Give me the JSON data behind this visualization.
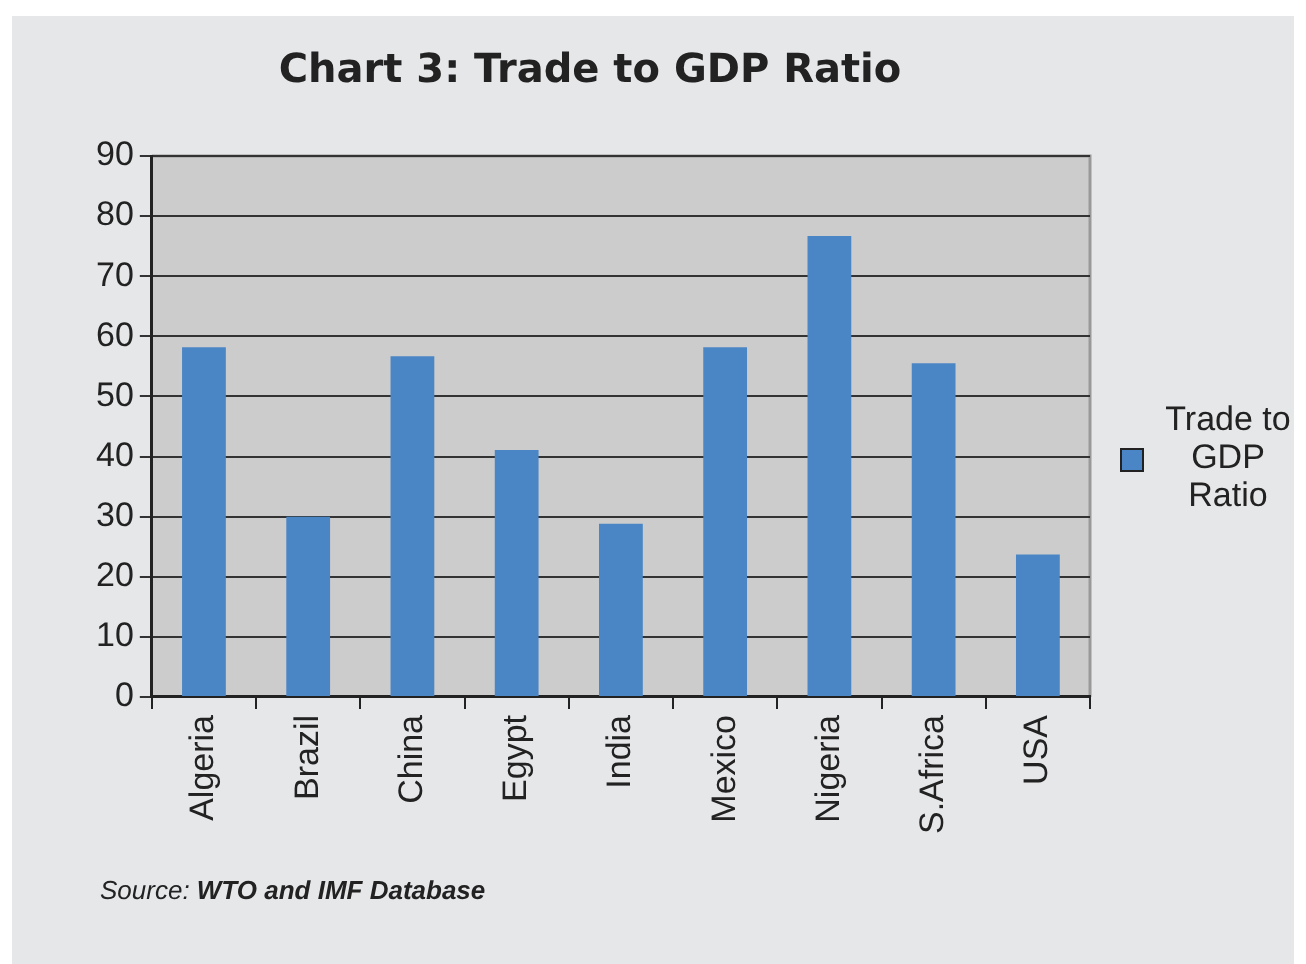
{
  "chart_data": {
    "type": "bar",
    "title": "Chart 3: Trade to GDP Ratio",
    "categories": [
      "Algeria",
      "Brazil",
      "China",
      "Egypt",
      "India",
      "Mexico",
      "Nigeria",
      "S.Africa",
      "USA"
    ],
    "series": [
      {
        "name": "Trade to GDP Ratio",
        "color": "#4a86c5",
        "values": [
          58.2,
          30,
          56.7,
          41.1,
          28.8,
          58.2,
          76.7,
          55.5,
          23.7
        ]
      }
    ],
    "ylim": [
      0,
      90
    ],
    "yticks": [
      0,
      10,
      20,
      30,
      40,
      50,
      60,
      70,
      80,
      90
    ],
    "grid": "y",
    "legend": "right",
    "annotations": [
      "Source: WTO and IMF Database"
    ]
  }
}
